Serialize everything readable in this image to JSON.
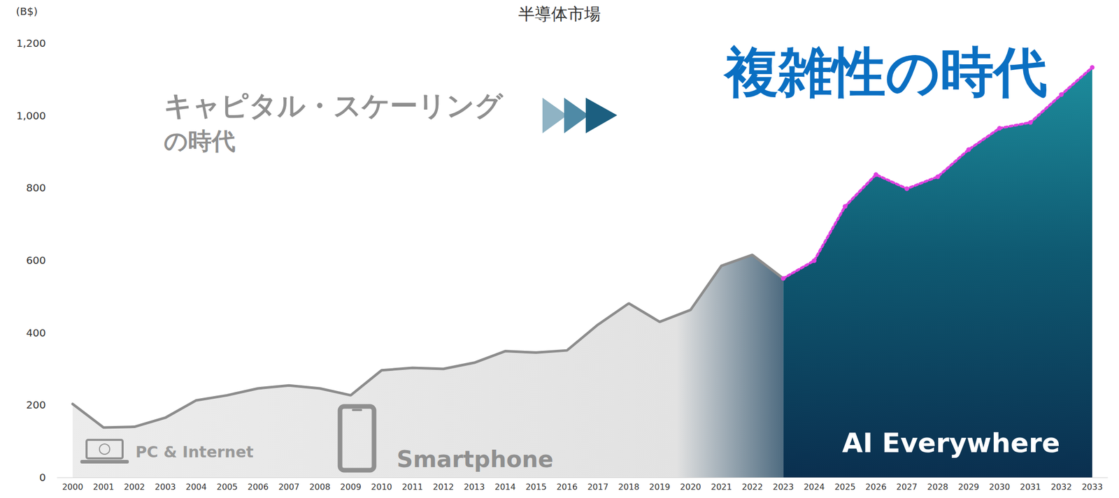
{
  "chart_data": {
    "type": "line",
    "title": "半導体市場",
    "ylabel": "(B$)",
    "categories": [
      "2000",
      "2001",
      "2002",
      "2003",
      "2004",
      "2005",
      "2006",
      "2007",
      "2008",
      "2009",
      "2010",
      "2011",
      "2012",
      "2013",
      "2014",
      "2015",
      "2016",
      "2017",
      "2018",
      "2019",
      "2020",
      "2021",
      "2022",
      "2023",
      "2024",
      "2025",
      "2026",
      "2027",
      "2028",
      "2029",
      "2030",
      "2031",
      "2032",
      "2033"
    ],
    "series": [
      {
        "color": "#8c8c8c",
        "line_style": "solid",
        "marker": "none",
        "values": [
          203,
          138,
          140,
          165,
          213,
          227,
          246,
          254,
          246,
          227,
          296,
          303,
          300,
          317,
          349,
          345,
          351,
          422,
          481,
          430,
          463,
          585,
          615,
          550,
          null,
          null,
          null,
          null,
          null,
          null,
          null,
          null,
          null,
          null
        ]
      },
      {
        "color": "#e040e0",
        "line_style": "dotted",
        "marker": "circle",
        "values": [
          null,
          null,
          null,
          null,
          null,
          null,
          null,
          null,
          null,
          null,
          null,
          null,
          null,
          null,
          null,
          null,
          null,
          null,
          null,
          null,
          null,
          null,
          null,
          550,
          599,
          749,
          837,
          798,
          831,
          906,
          965,
          981,
          1058,
          1133
        ]
      }
    ],
    "ylim": [
      0,
      1200
    ],
    "yticks": [
      0,
      200,
      400,
      600,
      800,
      {
        "value": 1000,
        "label": "1,000"
      },
      {
        "value": 1200,
        "label": "1,200"
      }
    ],
    "grid": false,
    "annotations": [
      "キャピタル・スケーリング",
      "の時代",
      "複雑性の時代",
      "PC & Internet",
      "Smartphone",
      "AI Everywhere"
    ]
  }
}
